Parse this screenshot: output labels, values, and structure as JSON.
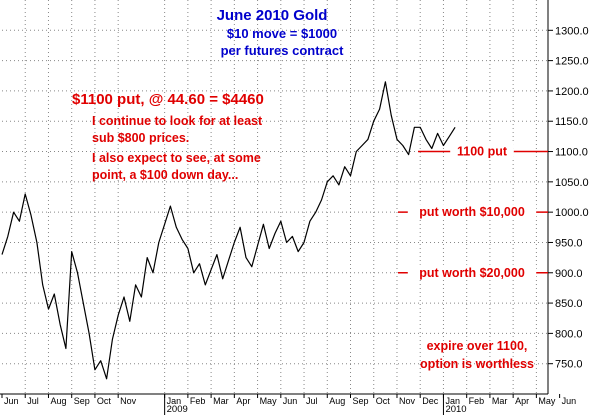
{
  "chart_data": {
    "type": "line",
    "title": "June 2010 Gold",
    "subtitle_lines": [
      "$10 move = $1000",
      "per futures contract"
    ],
    "trade_headline": "$1100 put, @ 44.60 = $4460",
    "commentary": [
      "I continue to look for at least",
      "sub $800 prices.",
      "I also expect to see, at some",
      "point, a $100 down day..."
    ],
    "annotations": [
      {
        "text": "1100 put",
        "price": 1100
      },
      {
        "text": "put worth $10,000",
        "price": 1000
      },
      {
        "text": "put worth $20,000",
        "price": 900
      }
    ],
    "footnote_lines": [
      "expire over 1100,",
      "option is worthless"
    ],
    "ylim": [
      700,
      1350
    ],
    "yticks": [
      750,
      800,
      850,
      900,
      950,
      1000,
      1050,
      1100,
      1150,
      1200,
      1250,
      1300
    ],
    "ytick_labels": [
      "750.0",
      "800.0",
      "850.0",
      "900.0",
      "950.0",
      "1000.0",
      "1050.0",
      "1100.0",
      "1150.0",
      "1200.0",
      "1250.0",
      "1300.0"
    ],
    "xlim": [
      0,
      23.5
    ],
    "months": [
      {
        "label": "Jun",
        "m": 0
      },
      {
        "label": "Jul",
        "m": 1
      },
      {
        "label": "Aug",
        "m": 2
      },
      {
        "label": "Sep",
        "m": 3
      },
      {
        "label": "Oct",
        "m": 4
      },
      {
        "label": "Nov",
        "m": 5
      },
      {
        "label": "Jan",
        "m": 7
      },
      {
        "label": "Feb",
        "m": 8
      },
      {
        "label": "Mar",
        "m": 9
      },
      {
        "label": "Apr",
        "m": 10
      },
      {
        "label": "May",
        "m": 11
      },
      {
        "label": "Jun",
        "m": 12
      },
      {
        "label": "Jul",
        "m": 13
      },
      {
        "label": "Aug",
        "m": 14
      },
      {
        "label": "Sep",
        "m": 15
      },
      {
        "label": "Oct",
        "m": 16
      },
      {
        "label": "Nov",
        "m": 17
      },
      {
        "label": "Dec",
        "m": 18
      },
      {
        "label": "Jan",
        "m": 19
      },
      {
        "label": "Feb",
        "m": 20
      },
      {
        "label": "Mar",
        "m": 21
      },
      {
        "label": "Apr",
        "m": 22
      },
      {
        "label": "May",
        "m": 23
      },
      {
        "label": "Jun",
        "m": 24
      }
    ],
    "years": [
      {
        "label": "2009",
        "m": 7
      },
      {
        "label": "2010",
        "m": 19
      }
    ],
    "series": [
      {
        "x": [
          0.0,
          0.25,
          0.5,
          0.75,
          1.0,
          1.25,
          1.5,
          1.75,
          2.0,
          2.25,
          2.5,
          2.75,
          3.0,
          3.25,
          3.5,
          3.75,
          4.0,
          4.25,
          4.5,
          4.75,
          5.0,
          5.25,
          5.5,
          5.75,
          6.0,
          6.25,
          6.5,
          6.75,
          7.0,
          7.25,
          7.5,
          7.75,
          8.0,
          8.25,
          8.5,
          8.75,
          9.0,
          9.25,
          9.5,
          9.75,
          10.0,
          10.25,
          10.5,
          10.75,
          11.0,
          11.25,
          11.5,
          11.75,
          12.0,
          12.25,
          12.5,
          12.75,
          13.0,
          13.25,
          13.5,
          13.75,
          14.0,
          14.25,
          14.5,
          14.75,
          15.0,
          15.25,
          15.5,
          15.75,
          16.0,
          16.25,
          16.5,
          16.75,
          17.0,
          17.25,
          17.5,
          17.75,
          18.0,
          18.25,
          18.5,
          18.75,
          19.0,
          19.25,
          19.5
        ],
        "y": [
          930,
          960,
          1000,
          985,
          1030,
          995,
          950,
          880,
          840,
          865,
          815,
          775,
          935,
          900,
          850,
          800,
          740,
          755,
          725,
          790,
          830,
          860,
          820,
          880,
          860,
          925,
          900,
          950,
          980,
          1010,
          975,
          955,
          940,
          900,
          915,
          880,
          905,
          930,
          890,
          920,
          950,
          975,
          925,
          910,
          945,
          980,
          940,
          965,
          985,
          950,
          960,
          935,
          950,
          985,
          1000,
          1020,
          1050,
          1060,
          1045,
          1075,
          1060,
          1100,
          1110,
          1120,
          1150,
          1170,
          1215,
          1160,
          1120,
          1110,
          1095,
          1140,
          1140,
          1120,
          1105,
          1130,
          1110,
          1125,
          1140
        ]
      }
    ]
  }
}
